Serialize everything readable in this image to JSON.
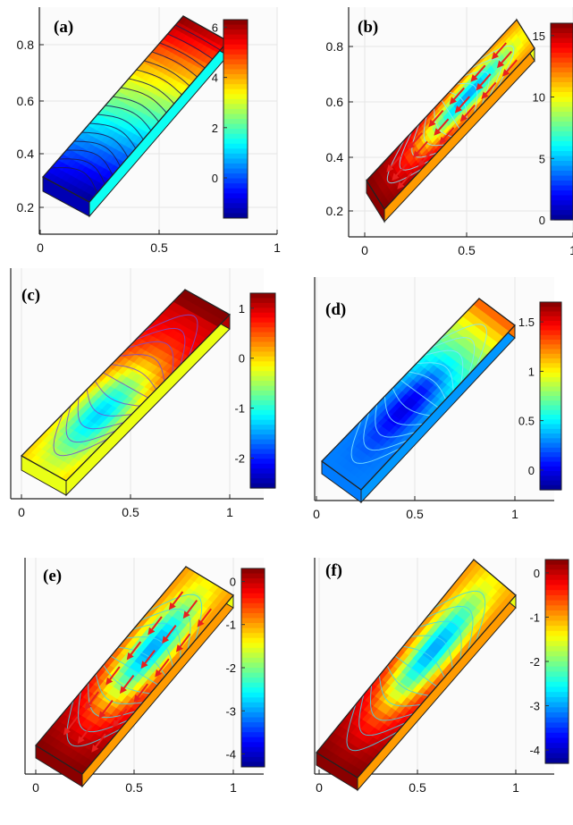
{
  "figure_colors": {
    "frame": "#222222",
    "grid": "#e6e6e6",
    "contour_dark": "#1a1a55",
    "contour_light": "#7fe6ff",
    "arrow": "#e8201e"
  },
  "chart_data": [
    {
      "type": "heatmap",
      "label": "(a)",
      "colorscale": "jet",
      "color_range": [
        -1.6,
        6.3
      ],
      "colorbar_ticks": [
        "6",
        "4",
        "2",
        "0"
      ],
      "x_ticks": [
        "0",
        "0.5",
        "1"
      ],
      "y_ticks": [
        "0.8",
        "0.6",
        "0.4",
        "0.2"
      ],
      "pattern": "gradient",
      "streamlines": false,
      "contour_color": "#1a1a55"
    },
    {
      "type": "heatmap",
      "label": "(b)",
      "colorscale": "jet",
      "color_range": [
        0,
        16
      ],
      "colorbar_ticks": [
        "15",
        "10",
        "5",
        "0"
      ],
      "x_ticks": [
        "0",
        "0.5",
        "1"
      ],
      "y_ticks": [
        "0.8",
        "0.6",
        "0.4",
        "0.2"
      ],
      "pattern": "flow",
      "streamlines": true,
      "contour_color": "#7fe6ff"
    },
    {
      "type": "heatmap",
      "label": "(c)",
      "colorscale": "jet",
      "color_range": [
        -2.6,
        1.3
      ],
      "colorbar_ticks": [
        "1",
        "0",
        "-1",
        "-2"
      ],
      "x_ticks": [
        "0",
        "0.5",
        "1"
      ],
      "y_ticks": [],
      "pattern": "lens",
      "streamlines": false,
      "contour_color": "#7a4ad0"
    },
    {
      "type": "heatmap",
      "label": "(d)",
      "colorscale": "jet",
      "color_range": [
        -0.2,
        1.7
      ],
      "colorbar_ticks": [
        "1.5",
        "1",
        "0.5",
        "0"
      ],
      "x_ticks": [
        "0",
        "0.5",
        "1"
      ],
      "y_ticks": [],
      "pattern": "cell",
      "streamlines": false,
      "contour_color": "#7fe6ff"
    },
    {
      "type": "heatmap",
      "label": "(e)",
      "colorscale": "jet",
      "color_range": [
        -4.3,
        0.3
      ],
      "colorbar_ticks": [
        "0",
        "-1",
        "-2",
        "-3",
        "-4"
      ],
      "x_ticks": [
        "0",
        "0.5",
        "1"
      ],
      "y_ticks": [],
      "pattern": "flow",
      "streamlines": true,
      "contour_color": "#40d8f0"
    },
    {
      "type": "heatmap",
      "label": "(f)",
      "colorscale": "jet",
      "color_range": [
        -4.3,
        0.3
      ],
      "colorbar_ticks": [
        "0",
        "-1",
        "-2",
        "-3",
        "-4"
      ],
      "x_ticks": [
        "0",
        "0.5",
        "1"
      ],
      "y_ticks": [],
      "pattern": "flow",
      "streamlines": false,
      "contour_color": "#40d8f0"
    }
  ]
}
